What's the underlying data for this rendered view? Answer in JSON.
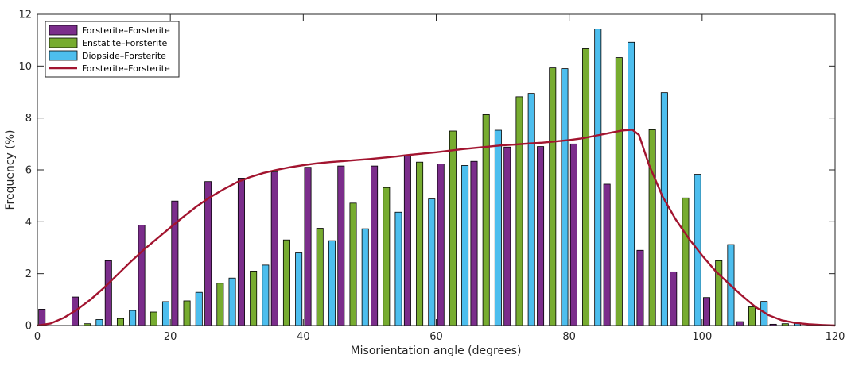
{
  "chart_data": {
    "type": "bar",
    "title": "",
    "xlabel": "Misorientation angle (degrees)",
    "ylabel": "Frequency (%)",
    "xlim": [
      0,
      120
    ],
    "ylim": [
      0,
      12
    ],
    "xticks": [
      "0",
      "20",
      "40",
      "60",
      "80",
      "100",
      "120"
    ],
    "yticks": [
      "0",
      "2",
      "4",
      "6",
      "8",
      "10",
      "12"
    ],
    "grid": false,
    "legend_position": "top-left",
    "bin_centers": [
      2.5,
      7.5,
      12.5,
      17.5,
      22.5,
      27.5,
      32.5,
      37.5,
      42.5,
      47.5,
      52.5,
      57.5,
      62.5,
      67.5,
      72.5,
      77.5,
      82.5,
      87.5,
      92.5,
      97.5,
      102.5,
      107.5,
      112.5,
      117.5
    ],
    "series": [
      {
        "name": "Forsterite–Forsterite",
        "color": "#7b2d8b",
        "values": [
          0.63,
          1.1,
          2.5,
          3.87,
          4.8,
          5.55,
          5.68,
          5.92,
          6.1,
          6.15,
          6.15,
          6.55,
          6.23,
          6.33,
          6.88,
          6.9,
          7.0,
          5.45,
          2.9,
          2.07,
          1.08,
          0.15,
          0.05,
          0.0
        ]
      },
      {
        "name": "Enstatite–Forsterite",
        "color": "#77ac30",
        "values": [
          0.0,
          0.07,
          0.27,
          0.52,
          0.95,
          1.63,
          2.1,
          3.3,
          3.75,
          4.72,
          5.32,
          6.3,
          7.5,
          8.13,
          8.82,
          9.93,
          10.67,
          10.33,
          7.55,
          4.92,
          2.5,
          0.72,
          0.07,
          0.0
        ]
      },
      {
        "name": "Diopside–Forsterite",
        "color": "#4dbeee",
        "values": [
          0.0,
          0.23,
          0.58,
          0.92,
          1.28,
          1.83,
          2.33,
          2.8,
          3.27,
          3.73,
          4.37,
          4.88,
          6.17,
          7.53,
          8.95,
          9.9,
          11.43,
          10.92,
          8.98,
          5.83,
          3.12,
          0.93,
          0.1,
          0.0
        ]
      },
      {
        "name": "Forsterite–Forsterite",
        "type": "line",
        "color": "#a2142f",
        "x": [
          0,
          2,
          4,
          6,
          8,
          10,
          12,
          14,
          16,
          18,
          20,
          22,
          24,
          26,
          28,
          30,
          32,
          34,
          36,
          38,
          40,
          42,
          44,
          46,
          48,
          50,
          52,
          54,
          56,
          58,
          60,
          62,
          64,
          66,
          68,
          70,
          72,
          74,
          76,
          78,
          80,
          82,
          84,
          86,
          88,
          89.5,
          90.5,
          92,
          94,
          96,
          98,
          100,
          102,
          104,
          106,
          108,
          110,
          112,
          114,
          116,
          118,
          120
        ],
        "y": [
          0.0,
          0.08,
          0.3,
          0.62,
          1.0,
          1.45,
          1.95,
          2.45,
          2.92,
          3.35,
          3.78,
          4.2,
          4.6,
          4.95,
          5.25,
          5.52,
          5.72,
          5.88,
          6.0,
          6.1,
          6.18,
          6.25,
          6.3,
          6.34,
          6.38,
          6.42,
          6.47,
          6.52,
          6.58,
          6.63,
          6.68,
          6.74,
          6.8,
          6.85,
          6.9,
          6.95,
          6.98,
          7.02,
          7.05,
          7.1,
          7.15,
          7.22,
          7.32,
          7.42,
          7.52,
          7.55,
          7.35,
          6.2,
          5.0,
          4.1,
          3.35,
          2.7,
          2.1,
          1.62,
          1.15,
          0.72,
          0.4,
          0.2,
          0.1,
          0.05,
          0.02,
          0.0
        ]
      }
    ]
  }
}
